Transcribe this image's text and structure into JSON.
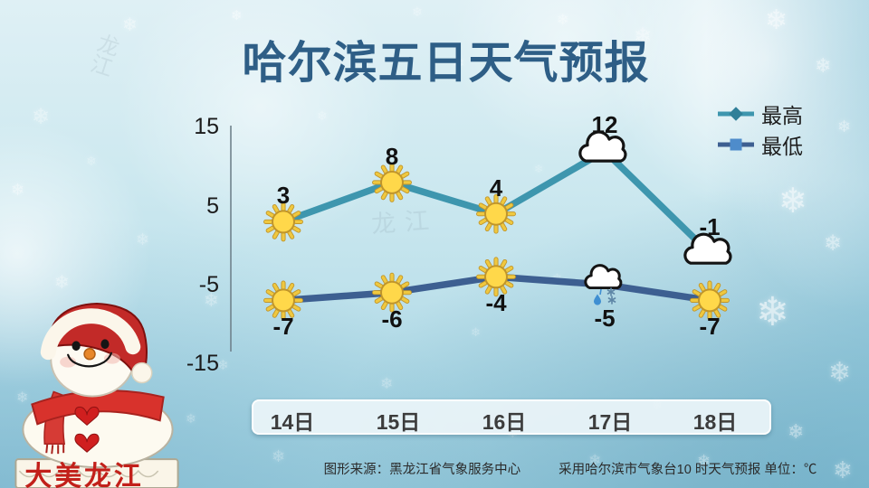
{
  "title": "哈尔滨五日天气预报",
  "y_axis": {
    "ticks": [
      "15",
      "5",
      "-5",
      "-15"
    ]
  },
  "chart_data": {
    "type": "line",
    "title": "哈尔滨五日天气预报",
    "categories": [
      "14日",
      "15日",
      "16日",
      "17日",
      "18日"
    ],
    "series": [
      {
        "name": "最高",
        "color_key": "high",
        "values": [
          3,
          8,
          4,
          12,
          -1
        ],
        "icons": [
          "sun",
          "sun",
          "sun",
          "cloud",
          "cloud"
        ]
      },
      {
        "name": "最低",
        "color_key": "low",
        "values": [
          -7,
          -6,
          -4,
          -5,
          -7
        ],
        "icons": [
          "sun",
          "sun",
          "sun",
          "sleet",
          "sun"
        ]
      }
    ],
    "ylim": [
      -15,
      15
    ],
    "y_ticks": [
      15,
      5,
      -5,
      -15
    ],
    "unit": "℃",
    "grid": false,
    "legend_position": "top-right"
  },
  "colors": {
    "high_line": "#3E96AE",
    "high_marker": "#2F7F98",
    "low_line": "#3D5F91",
    "low_marker": "#4E8CCB",
    "title": "#2E5E86",
    "axis_text": "#1B1B1B",
    "label_text": "#111111",
    "date_text": "#3C3C3C",
    "footer_text": "#2B2B2B",
    "sun_fill": "#FFD84A",
    "sun_ray": "#EFC83F",
    "sun_stroke": "#C0952B",
    "cloud_fill": "#FFFFFF",
    "cloud_stroke": "#141414",
    "drop": "#3F8FD2",
    "snow_mark": "#5E86A6"
  },
  "icons": {
    "snowflake": "❄"
  },
  "footer": {
    "source": "图形来源：黑龙江省气象服务中心",
    "note": "采用哈尔滨市气象台10 时天气预报 单位：℃"
  },
  "snowman": {
    "banner_text": "大美龙江"
  },
  "watermark": {
    "text": "龙江"
  }
}
